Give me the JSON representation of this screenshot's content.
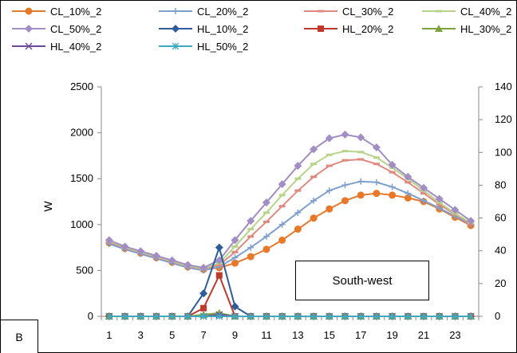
{
  "panel_label": "B",
  "annotation": "South-west",
  "chart_data": {
    "type": "line",
    "title": "",
    "xlabel": "",
    "ylabel": "W",
    "x": [
      1,
      2,
      3,
      4,
      5,
      6,
      7,
      8,
      9,
      10,
      11,
      12,
      13,
      14,
      15,
      16,
      17,
      18,
      19,
      20,
      21,
      22,
      23,
      24
    ],
    "x_tick_labels": [
      "1",
      "3",
      "5",
      "7",
      "9",
      "11",
      "13",
      "15",
      "17",
      "19",
      "21",
      "23"
    ],
    "ylim": [
      0,
      2500
    ],
    "y_ticks": [
      0,
      500,
      1000,
      1500,
      2000,
      2500
    ],
    "y2lim": [
      0,
      140
    ],
    "y2_ticks": [
      0,
      20,
      40,
      60,
      80,
      100,
      120,
      140
    ],
    "grid": false,
    "legend_position": "top",
    "series": [
      {
        "name": "CL_10%_2",
        "axis": "left",
        "color": "#e8792b",
        "marker": "circle",
        "values": [
          800,
          740,
          690,
          640,
          590,
          540,
          510,
          530,
          580,
          650,
          730,
          830,
          950,
          1070,
          1170,
          1260,
          1320,
          1340,
          1320,
          1290,
          1250,
          1170,
          1080,
          990
        ]
      },
      {
        "name": "CL_20%_2",
        "axis": "left",
        "color": "#7f9fcf",
        "marker": "plus",
        "values": [
          790,
          730,
          680,
          630,
          580,
          530,
          500,
          540,
          640,
          750,
          870,
          1000,
          1130,
          1260,
          1370,
          1430,
          1470,
          1460,
          1410,
          1340,
          1260,
          1180,
          1090,
          1000
        ]
      },
      {
        "name": "CL_30%_2",
        "axis": "left",
        "color": "#e0897f",
        "marker": "dash",
        "values": [
          810,
          745,
          695,
          645,
          595,
          545,
          515,
          560,
          700,
          870,
          1030,
          1200,
          1370,
          1520,
          1640,
          1700,
          1710,
          1660,
          1570,
          1460,
          1340,
          1220,
          1110,
          1010
        ]
      },
      {
        "name": "CL_40%_2",
        "axis": "left",
        "color": "#b8d48a",
        "marker": "dash",
        "values": [
          820,
          750,
          700,
          650,
          600,
          550,
          520,
          580,
          760,
          950,
          1130,
          1320,
          1500,
          1660,
          1760,
          1800,
          1790,
          1730,
          1620,
          1500,
          1370,
          1240,
          1120,
          1020
        ]
      },
      {
        "name": "CL_50%_2",
        "axis": "left",
        "color": "#a28dc4",
        "marker": "diamond",
        "values": [
          830,
          760,
          710,
          660,
          610,
          560,
          530,
          610,
          830,
          1040,
          1240,
          1440,
          1640,
          1820,
          1940,
          1980,
          1950,
          1840,
          1650,
          1520,
          1400,
          1280,
          1160,
          1040
        ]
      },
      {
        "name": "HL_10%_2",
        "axis": "right",
        "color": "#2e5c9a",
        "marker": "diamond",
        "values": [
          0,
          0,
          0,
          0,
          0,
          0,
          14,
          42,
          6,
          0,
          0,
          0,
          0,
          0,
          0,
          0,
          0,
          0,
          0,
          0,
          0,
          0,
          0,
          0
        ]
      },
      {
        "name": "HL_20%_2",
        "axis": "right",
        "color": "#c0392b",
        "marker": "square",
        "values": [
          0,
          0,
          0,
          0,
          0,
          0,
          5,
          25,
          0,
          0,
          0,
          0,
          0,
          0,
          0,
          0,
          0,
          0,
          0,
          0,
          0,
          0,
          0,
          0
        ]
      },
      {
        "name": "HL_30%_2",
        "axis": "right",
        "color": "#7fa33b",
        "marker": "triangle",
        "values": [
          0,
          0,
          0,
          0,
          0,
          0,
          1,
          2,
          0,
          0,
          0,
          0,
          0,
          0,
          0,
          0,
          0,
          0,
          0,
          0,
          0,
          0,
          0,
          0
        ]
      },
      {
        "name": "HL_40%_2",
        "axis": "right",
        "color": "#6b4a9a",
        "marker": "x",
        "values": [
          0,
          0,
          0,
          0,
          0,
          0,
          0,
          1,
          0,
          0,
          0,
          0,
          0,
          0,
          0,
          0,
          0,
          0,
          0,
          0,
          0,
          0,
          0,
          0
        ]
      },
      {
        "name": "HL_50%_2",
        "axis": "right",
        "color": "#3fa9c0",
        "marker": "asterisk",
        "values": [
          0,
          0,
          0,
          0,
          0,
          0,
          0,
          0,
          0,
          0,
          0,
          0,
          0,
          0,
          0,
          0,
          0,
          0,
          0,
          0,
          0,
          0,
          0,
          0
        ]
      }
    ]
  }
}
